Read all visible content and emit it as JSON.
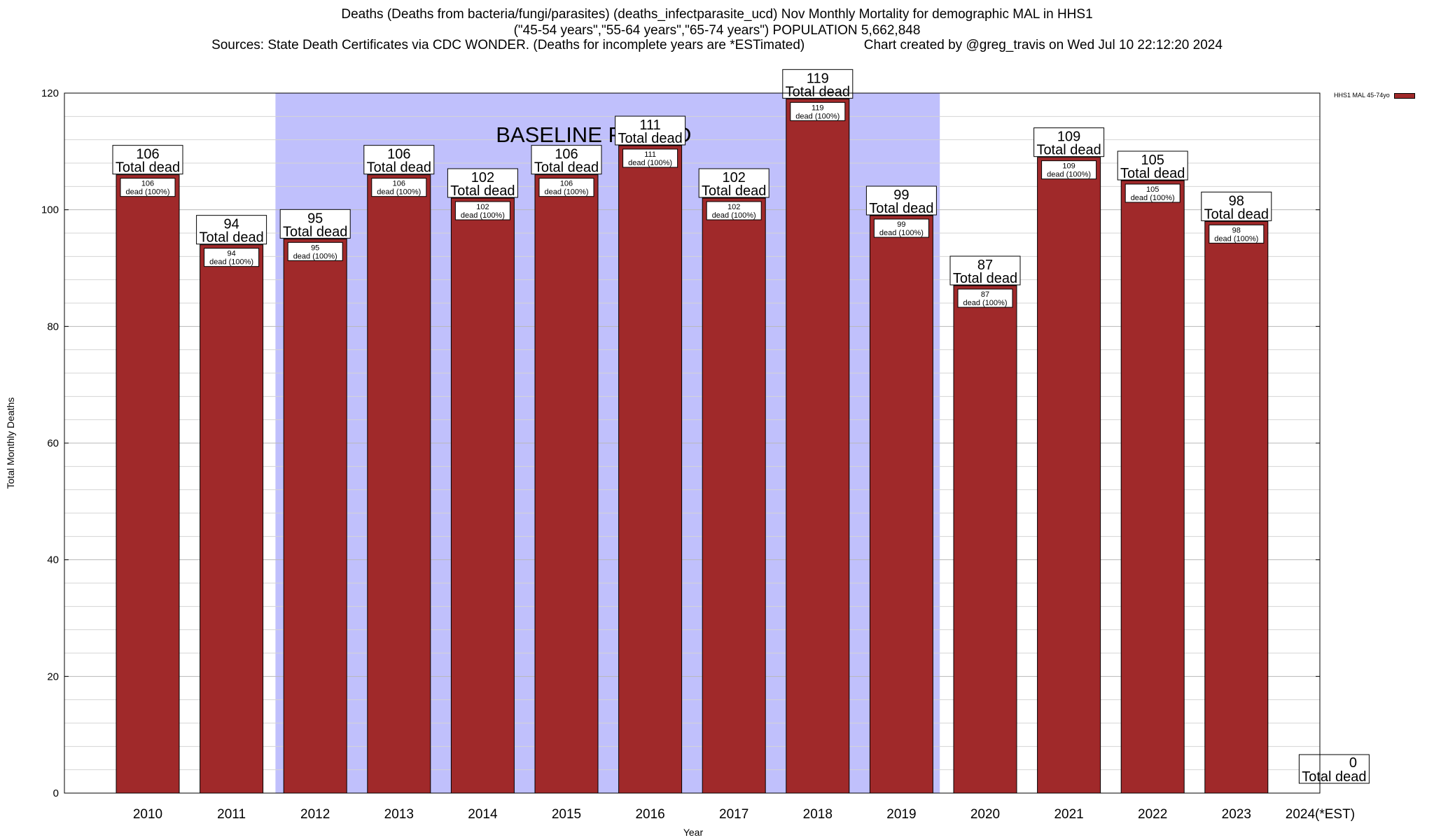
{
  "chart_data": {
    "type": "bar",
    "title_lines": [
      "Deaths (Deaths from bacteria/fungi/parasites) (deaths_infectparasite_ucd) Nov Monthly Mortality for demographic MAL in HHS1",
      "(\"45-54 years\",\"55-64 years\",\"65-74 years\") POPULATION 5,662,848",
      "Sources: State Death Certificates via CDC WONDER. (Deaths for incomplete years are *ESTimated)                Chart created by @greg_travis on Wed Jul 10 22:12:20 2024"
    ],
    "xlabel": "Year",
    "ylabel": "Total Monthly Deaths",
    "ylim": [
      0,
      120
    ],
    "yticks": [
      0,
      20,
      40,
      60,
      80,
      100,
      120
    ],
    "categories": [
      "2010",
      "2011",
      "2012",
      "2013",
      "2014",
      "2015",
      "2016",
      "2017",
      "2018",
      "2019",
      "2020",
      "2021",
      "2022",
      "2023",
      "2024(*EST)"
    ],
    "series": [
      {
        "name": "HHS1 MAL 45-74yo",
        "values": [
          106,
          94,
          95,
          106,
          102,
          106,
          111,
          102,
          119,
          99,
          87,
          109,
          105,
          98,
          0
        ]
      }
    ],
    "top_label_suffix": "Total dead",
    "inner_label_suffix": "dead (100%)",
    "baseline_period": {
      "label": "BASELINE PERIOD",
      "from": "2012",
      "to": "2019"
    },
    "colors": {
      "bar": "#a0292a",
      "baseline": "#c0c0fc"
    },
    "grid": true,
    "legend_position": "top-right"
  }
}
